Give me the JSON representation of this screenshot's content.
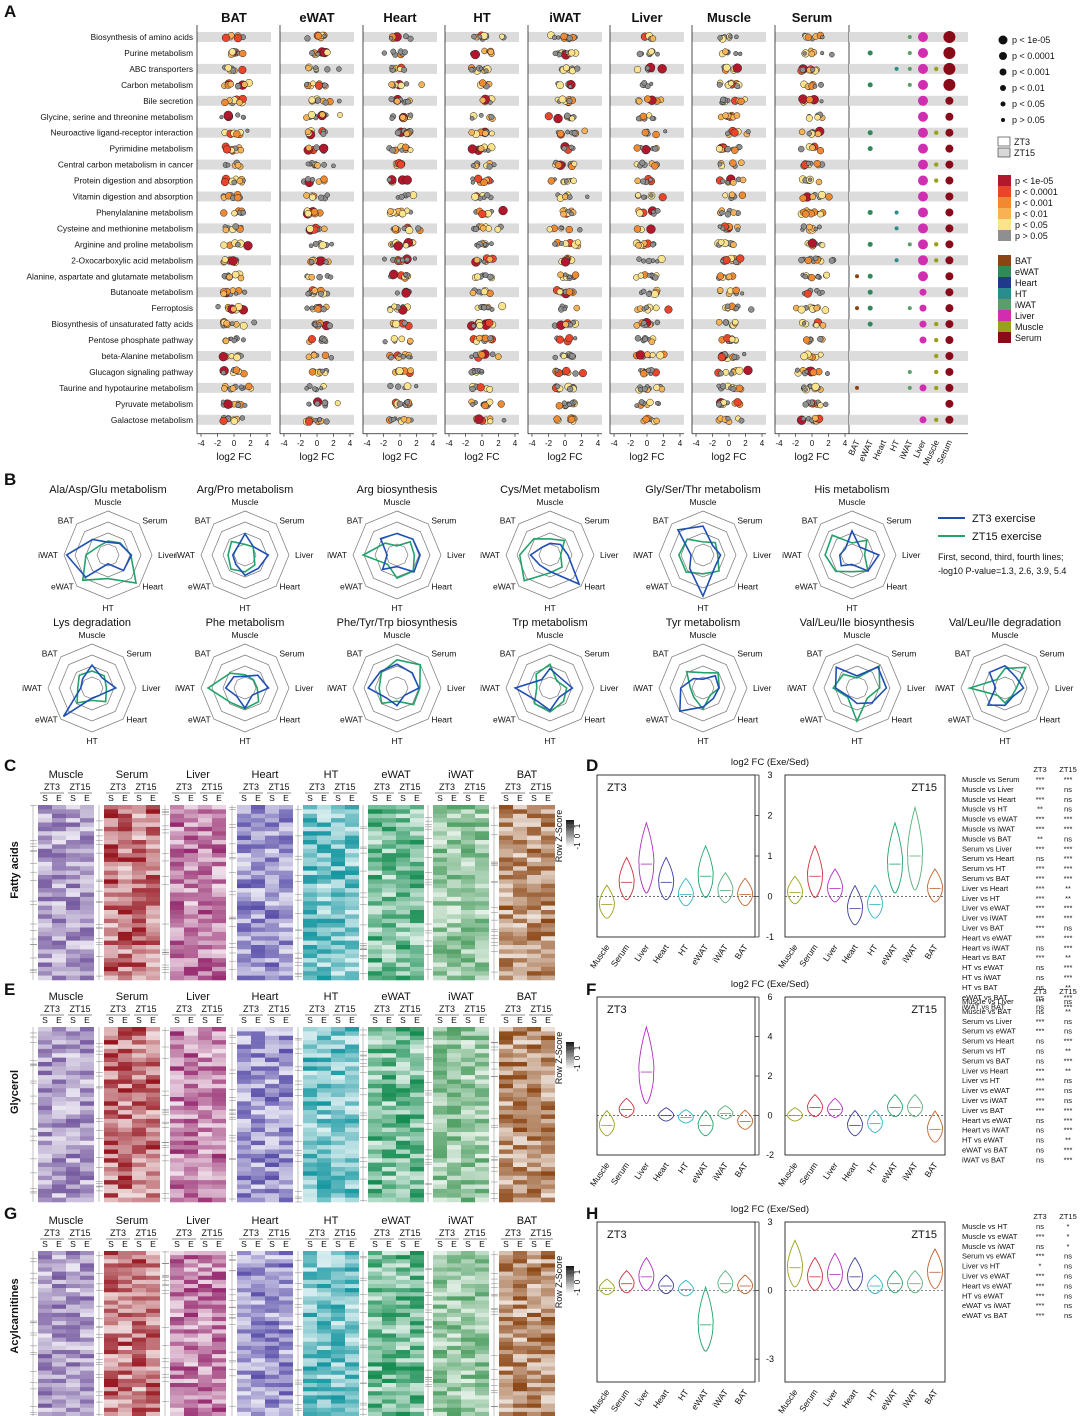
{
  "panels": {
    "A": "A",
    "B": "B",
    "C": "C",
    "D": "D",
    "E": "E",
    "F": "F",
    "G": "G",
    "H": "H"
  },
  "panelA": {
    "tissues": [
      "BAT",
      "eWAT",
      "Heart",
      "HT",
      "iWAT",
      "Liver",
      "Muscle",
      "Serum"
    ],
    "pathways": [
      "Biosynthesis of amino acids",
      "Purine metabolism",
      "ABC transporters",
      "Carbon metabolism",
      "Bile secretion",
      "Glycine, serine and threonine metabolism",
      "Neuroactive ligand-receptor interaction",
      "Pyrimidine metabolism",
      "Central carbon metabolism in cancer",
      "Protein digestion and absorption",
      "Vitamin digestion and absorption",
      "Phenylalanine metabolism",
      "Cysteine and methionine metabolism",
      "Arginine and proline metabolism",
      "2-Oxocarboxylic acid metabolism",
      "Alanine, aspartate and glutamate metabolism",
      "Butanoate metabolism",
      "Ferroptosis",
      "Biosynthesis of unsaturated fatty acids",
      "Pentose phosphate pathway",
      "beta-Alanine metabolism",
      "Glucagon signaling pathway",
      "Taurine and hypotaurine metabolism",
      "Pyruvate metabolism",
      "Galactose metabolism"
    ],
    "x_ticks": [
      "-4",
      "-2",
      "0",
      "2",
      "4"
    ],
    "xlabel": "log2 FC",
    "size_legend": [
      "p < 1e-05",
      "p < 0.0001",
      "p < 0.001",
      "p < 0.01",
      "p < 0.05",
      "p > 0.05"
    ],
    "zt_legend": [
      "ZT3",
      "ZT15"
    ],
    "color_legend": [
      "p < 1e-05",
      "p < 0.0001",
      "p < 0.001",
      "p < 0.01",
      "p < 0.05",
      "p > 0.05"
    ],
    "color_legend_colors": [
      "#b2182b",
      "#e8452a",
      "#f08a32",
      "#f7b255",
      "#fbe38d",
      "#8f8f8f"
    ],
    "tissue_legend": [
      "BAT",
      "eWAT",
      "Heart",
      "HT",
      "iWAT",
      "Liver",
      "Muscle",
      "Serum"
    ],
    "tissue_colors": [
      "#8b4513",
      "#2e8b57",
      "#1f3a8a",
      "#2a8c8c",
      "#5e9c6a",
      "#d02eae",
      "#9aa118",
      "#8b0a1a"
    ],
    "summary_x_labels": [
      "BAT",
      "eWAT",
      "Heart",
      "HT",
      "iWAT",
      "Liver",
      "Muscle",
      "Serum"
    ]
  },
  "panelB": {
    "titles": [
      "Ala/Asp/Glu metabolism",
      "Arg/Pro metabolism",
      "Arg biosynthesis",
      "Cys/Met metabolism",
      "Gly/Ser/Thr metabolism",
      "His metabolism",
      "Lys degradation",
      "Phe metabolism",
      "Phe/Tyr/Trp biosynthesis",
      "Trp metabolism",
      "Tyr metabolism",
      "Val/Leu/Ile biosynthesis",
      "Val/Leu/Ile degradation"
    ],
    "axes": [
      "Muscle",
      "Serum",
      "Liver",
      "Heart",
      "HT",
      "eWAT",
      "iWAT",
      "BAT"
    ],
    "legend": [
      "ZT3 exercise",
      "ZT15 exercise"
    ],
    "note": [
      "First, second, third, fourth lines;",
      "-log10 P-value=1.3, 2.6, 3.9, 5.4"
    ],
    "colors": {
      "zt3": "#1f4fb4",
      "zt15": "#21a36a"
    }
  },
  "heatmaps": {
    "tissues": [
      "Muscle",
      "Serum",
      "Liver",
      "Heart",
      "HT",
      "eWAT",
      "iWAT",
      "BAT"
    ],
    "zt": [
      "ZT3",
      "ZT15"
    ],
    "se": [
      "S",
      "E",
      "S",
      "E"
    ],
    "rows": [
      "Fatty acids",
      "Glycerol",
      "Acylcarnitines"
    ],
    "scale_title": "Row Z-Score",
    "scale_ticks": [
      "-1",
      "0",
      "1"
    ]
  },
  "violins": {
    "title": "log2 FC (Exe/Sed)",
    "categories": [
      "Muscle",
      "Serum",
      "Liver",
      "Heart",
      "HT",
      "eWAT",
      "iWAT",
      "BAT"
    ],
    "colors": [
      "#9aa118",
      "#c8313b",
      "#b02fc0",
      "#3b3b9a",
      "#2fb4c0",
      "#21a36a",
      "#5ab07a",
      "#c0632a"
    ],
    "zt3": "ZT3",
    "zt15": "ZT15",
    "stat_header": [
      "ZT3",
      "ZT15"
    ]
  },
  "chart_data": [
    {
      "type": "violin",
      "panel": "D",
      "title": "log2 FC (Exe/Sed)",
      "categories": [
        "Muscle",
        "Serum",
        "Liver",
        "Heart",
        "HT",
        "eWAT",
        "iWAT",
        "BAT"
      ],
      "series": [
        {
          "name": "ZT3",
          "values": [
            -0.2,
            0.35,
            0.8,
            0.35,
            0.05,
            0.5,
            0.15,
            0.05
          ]
        },
        {
          "name": "ZT15",
          "values": [
            0.1,
            0.5,
            0.2,
            -0.3,
            -0.2,
            0.8,
            1.0,
            0.2
          ]
        }
      ],
      "ylim": [
        -1,
        3
      ],
      "yticks": [
        "-1",
        "0",
        "1",
        "2",
        "3"
      ],
      "stats": [
        [
          "Muscle vs Serum",
          "***",
          "***"
        ],
        [
          "Muscle vs Liver",
          "***",
          "ns"
        ],
        [
          "Muscle vs Heart",
          "***",
          "ns"
        ],
        [
          "Muscle vs HT",
          "**",
          "ns"
        ],
        [
          "Muscle vs eWAT",
          "***",
          "***"
        ],
        [
          "Muscle vs iWAT",
          "***",
          "***"
        ],
        [
          "Muscle vs BAT",
          "**",
          "ns"
        ],
        [
          "Serum vs Liver",
          "***",
          "***"
        ],
        [
          "Serum vs Heart",
          "ns",
          "***"
        ],
        [
          "Serum vs HT",
          "***",
          "***"
        ],
        [
          "Serum vs BAT",
          "***",
          "***"
        ],
        [
          "Liver vs Heart",
          "***",
          "**"
        ],
        [
          "Liver vs HT",
          "***",
          "**"
        ],
        [
          "Liver vs eWAT",
          "***",
          "***"
        ],
        [
          "Liver vs iWAT",
          "***",
          "***"
        ],
        [
          "Liver vs BAT",
          "***",
          "ns"
        ],
        [
          "Heart vs eWAT",
          "***",
          "***"
        ],
        [
          "Heart vs iWAT",
          "ns",
          "***"
        ],
        [
          "Heart vs BAT",
          "***",
          "**"
        ],
        [
          "HT vs eWAT",
          "ns",
          "***"
        ],
        [
          "HT vs iWAT",
          "ns",
          "***"
        ],
        [
          "HT vs BAT",
          "ns",
          "**"
        ],
        [
          "eWAT vs BAT",
          "ns",
          "***"
        ],
        [
          "iWAT vs BAT",
          "ns",
          "***"
        ]
      ]
    },
    {
      "type": "violin",
      "panel": "F",
      "title": "log2 FC (Exe/Sed)",
      "categories": [
        "Muscle",
        "Serum",
        "Liver",
        "Heart",
        "HT",
        "eWAT",
        "iWAT",
        "BAT"
      ],
      "series": [
        {
          "name": "ZT3",
          "values": [
            -0.5,
            0.3,
            2.2,
            0.0,
            -0.1,
            -0.5,
            0.1,
            -0.3
          ]
        },
        {
          "name": "ZT15",
          "values": [
            0.0,
            0.4,
            0.3,
            -0.5,
            -0.4,
            0.4,
            0.4,
            -0.7
          ]
        }
      ],
      "ylim": [
        -2,
        6
      ],
      "yticks": [
        "-2",
        "0",
        "2",
        "4",
        "6"
      ],
      "stats": [
        [
          "Muscle vs Liver",
          "***",
          "ns"
        ],
        [
          "Muscle vs BAT",
          "ns",
          "**"
        ],
        [
          "Serum vs Liver",
          "***",
          "ns"
        ],
        [
          "Serum vs eWAT",
          "***",
          "ns"
        ],
        [
          "Serum vs Heart",
          "ns",
          "***"
        ],
        [
          "Serum vs HT",
          "ns",
          "**"
        ],
        [
          "Serum vs BAT",
          "ns",
          "***"
        ],
        [
          "Liver vs Heart",
          "***",
          "**"
        ],
        [
          "Liver vs HT",
          "***",
          "ns"
        ],
        [
          "Liver vs eWAT",
          "***",
          "ns"
        ],
        [
          "Liver vs iWAT",
          "***",
          "ns"
        ],
        [
          "Liver vs BAT",
          "***",
          "***"
        ],
        [
          "Heart vs eWAT",
          "ns",
          "***"
        ],
        [
          "Heart vs iWAT",
          "ns",
          "***"
        ],
        [
          "HT vs eWAT",
          "ns",
          "**"
        ],
        [
          "eWAT vs BAT",
          "ns",
          "***"
        ],
        [
          "iWAT vs BAT",
          "ns",
          "***"
        ]
      ]
    },
    {
      "type": "violin",
      "panel": "H",
      "title": "log2 FC (Exe/Sed)",
      "categories": [
        "Muscle",
        "Serum",
        "Liver",
        "Heart",
        "HT",
        "eWAT",
        "iWAT",
        "BAT"
      ],
      "series": [
        {
          "name": "ZT3",
          "values": [
            0.1,
            0.3,
            0.6,
            0.2,
            0.05,
            -1.5,
            0.3,
            0.2
          ]
        },
        {
          "name": "ZT15",
          "values": [
            1.0,
            0.6,
            0.7,
            0.6,
            0.2,
            0.3,
            0.3,
            0.8
          ]
        }
      ],
      "ylim": [
        -4,
        3
      ],
      "yticks": [
        "-3",
        "0",
        "3"
      ],
      "stats": [
        [
          "Muscle vs HT",
          "ns",
          "*"
        ],
        [
          "Muscle vs eWAT",
          "***",
          "*"
        ],
        [
          "Muscle vs iWAT",
          "ns",
          "*"
        ],
        [
          "Serum vs eWAT",
          "***",
          "ns"
        ],
        [
          "Liver vs HT",
          "*",
          "ns"
        ],
        [
          "Liver vs eWAT",
          "***",
          "ns"
        ],
        [
          "Heart vs eWAT",
          "***",
          "ns"
        ],
        [
          "HT vs eWAT",
          "***",
          "ns"
        ],
        [
          "eWAT vs iWAT",
          "***",
          "ns"
        ],
        [
          "eWAT vs BAT",
          "***",
          "ns"
        ]
      ]
    }
  ]
}
